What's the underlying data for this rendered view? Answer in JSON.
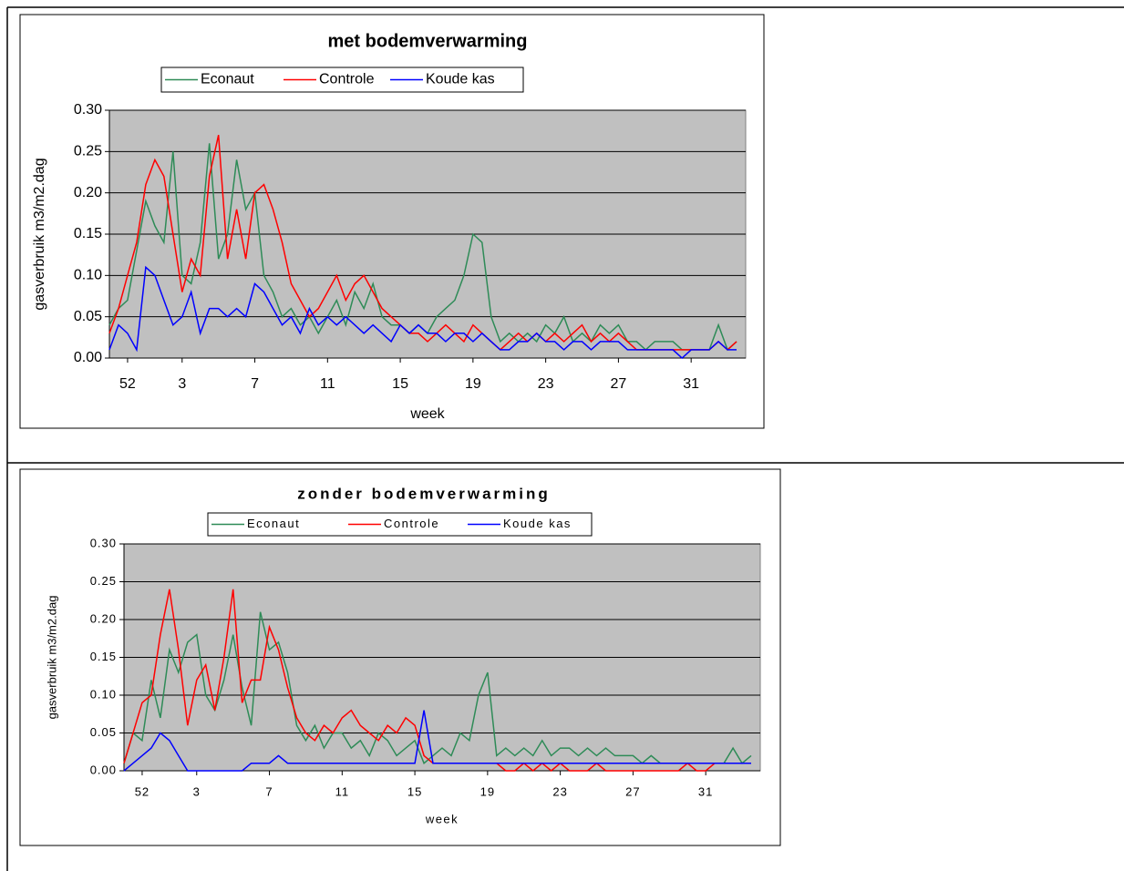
{
  "chart_data": [
    {
      "type": "line",
      "title": "met bodemverwarming",
      "ylabel": "gasverbruik m3/m2.dag",
      "xlabel": "week",
      "categories": [
        null,
        null,
        "52",
        null,
        null,
        null,
        null,
        null,
        "3",
        null,
        null,
        null,
        null,
        null,
        null,
        null,
        "7",
        null,
        null,
        null,
        null,
        null,
        null,
        null,
        "11",
        null,
        null,
        null,
        null,
        null,
        null,
        null,
        "15",
        null,
        null,
        null,
        null,
        null,
        null,
        null,
        "19",
        null,
        null,
        null,
        null,
        null,
        null,
        null,
        "23",
        null,
        null,
        null,
        null,
        null,
        null,
        null,
        "27",
        null,
        null,
        null,
        null,
        null,
        null,
        null,
        "31",
        null,
        null,
        null,
        null,
        null
      ],
      "ylim": [
        0,
        0.3
      ],
      "yticks": [
        {
          "value": 0,
          "label": "0.00"
        },
        0.05,
        {
          "value": 0.1,
          "label": "0.10"
        },
        0.15,
        {
          "value": 0.2,
          "label": "0.20"
        },
        0.25,
        {
          "value": 0.3,
          "label": "0.30"
        }
      ],
      "grid": true,
      "series": [
        {
          "name": "Econaut",
          "color": "#2e8b57",
          "values": [
            0.04,
            0.06,
            0.07,
            0.13,
            0.19,
            0.16,
            0.14,
            0.25,
            0.1,
            0.09,
            0.14,
            0.26,
            0.12,
            0.15,
            0.24,
            0.18,
            0.2,
            0.1,
            0.08,
            0.05,
            0.06,
            0.04,
            0.05,
            0.03,
            0.05,
            0.07,
            0.04,
            0.08,
            0.06,
            0.09,
            0.05,
            0.04,
            0.04,
            0.03,
            0.04,
            0.03,
            0.05,
            0.06,
            0.07,
            0.1,
            0.15,
            0.14,
            0.05,
            0.02,
            0.03,
            0.02,
            0.03,
            0.02,
            0.04,
            0.03,
            0.05,
            0.02,
            0.03,
            0.02,
            0.04,
            0.03,
            0.04,
            0.02,
            0.02,
            0.01,
            0.02,
            0.02,
            0.02,
            0.01,
            0.01,
            0.01,
            0.01,
            0.04,
            0.01,
            0.02
          ]
        },
        {
          "name": "Controle",
          "color": "#ff0000",
          "values": [
            0.03,
            0.06,
            0.1,
            0.14,
            0.21,
            0.24,
            0.22,
            0.15,
            0.08,
            0.12,
            0.1,
            0.22,
            0.27,
            0.12,
            0.18,
            0.12,
            0.2,
            0.21,
            0.18,
            0.14,
            0.09,
            0.07,
            0.05,
            0.06,
            0.08,
            0.1,
            0.07,
            0.09,
            0.1,
            0.08,
            0.06,
            0.05,
            0.04,
            0.03,
            0.03,
            0.02,
            0.03,
            0.04,
            0.03,
            0.02,
            0.04,
            0.03,
            0.02,
            0.01,
            0.02,
            0.03,
            0.02,
            0.03,
            0.02,
            0.03,
            0.02,
            0.03,
            0.04,
            0.02,
            0.03,
            0.02,
            0.03,
            0.02,
            0.01,
            0.01,
            0.01,
            0.01,
            0.01,
            0.01,
            0.01,
            0.01,
            0.01,
            0.02,
            0.01,
            0.02
          ]
        },
        {
          "name": "Koude kas",
          "color": "#0000ff",
          "values": [
            0.01,
            0.04,
            0.03,
            0.01,
            0.11,
            0.1,
            0.07,
            0.04,
            0.05,
            0.08,
            0.03,
            0.06,
            0.06,
            0.05,
            0.06,
            0.05,
            0.09,
            0.08,
            0.06,
            0.04,
            0.05,
            0.03,
            0.06,
            0.04,
            0.05,
            0.04,
            0.05,
            0.04,
            0.03,
            0.04,
            0.03,
            0.02,
            0.04,
            0.03,
            0.04,
            0.03,
            0.03,
            0.02,
            0.03,
            0.03,
            0.02,
            0.03,
            0.02,
            0.01,
            0.01,
            0.02,
            0.02,
            0.03,
            0.02,
            0.02,
            0.01,
            0.02,
            0.02,
            0.01,
            0.02,
            0.02,
            0.02,
            0.01,
            0.01,
            0.01,
            0.01,
            0.01,
            0.01,
            0,
            0.01,
            0.01,
            0.01,
            0.02,
            0.01,
            0.01
          ]
        }
      ]
    },
    {
      "type": "line",
      "title": "zonder bodemverwarming",
      "ylabel": "gasverbruik m3/m2.dag",
      "xlabel": "week",
      "categories": [
        null,
        null,
        "52",
        null,
        null,
        null,
        null,
        null,
        "3",
        null,
        null,
        null,
        null,
        null,
        null,
        null,
        "7",
        null,
        null,
        null,
        null,
        null,
        null,
        null,
        "11",
        null,
        null,
        null,
        null,
        null,
        null,
        null,
        "15",
        null,
        null,
        null,
        null,
        null,
        null,
        null,
        "19",
        null,
        null,
        null,
        null,
        null,
        null,
        null,
        "23",
        null,
        null,
        null,
        null,
        null,
        null,
        null,
        "27",
        null,
        null,
        null,
        null,
        null,
        null,
        null,
        "31",
        null,
        null,
        null,
        null,
        null
      ],
      "ylim": [
        0,
        0.3
      ],
      "yticks": [
        {
          "value": 0,
          "label": "0.00"
        },
        0.05,
        {
          "value": 0.1,
          "label": "0.10"
        },
        0.15,
        {
          "value": 0.2,
          "label": "0.20"
        },
        0.25,
        {
          "value": 0.3,
          "label": "0.30"
        }
      ],
      "grid": true,
      "series": [
        {
          "name": "Econaut",
          "color": "#2e8b57",
          "values": [
            0.01,
            0.05,
            0.04,
            0.12,
            0.07,
            0.16,
            0.13,
            0.17,
            0.18,
            0.1,
            0.08,
            0.12,
            0.18,
            0.11,
            0.06,
            0.21,
            0.16,
            0.17,
            0.13,
            0.06,
            0.04,
            0.06,
            0.03,
            0.05,
            0.05,
            0.03,
            0.04,
            0.02,
            0.05,
            0.04,
            0.02,
            0.03,
            0.04,
            0.01,
            0.02,
            0.03,
            0.02,
            0.05,
            0.04,
            0.1,
            0.13,
            0.02,
            0.03,
            0.02,
            0.03,
            0.02,
            0.04,
            0.02,
            0.03,
            0.03,
            0.02,
            0.03,
            0.02,
            0.03,
            0.02,
            0.02,
            0.02,
            0.01,
            0.02,
            0.01,
            0.01,
            0.01,
            0.01,
            0.01,
            0.01,
            0.01,
            0.01,
            0.03,
            0.01,
            0.02
          ]
        },
        {
          "name": "Controle",
          "color": "#ff0000",
          "values": [
            0.01,
            0.05,
            0.09,
            0.1,
            0.18,
            0.24,
            0.16,
            0.06,
            0.12,
            0.14,
            0.08,
            0.15,
            0.24,
            0.09,
            0.12,
            0.12,
            0.19,
            0.16,
            0.11,
            0.07,
            0.05,
            0.04,
            0.06,
            0.05,
            0.07,
            0.08,
            0.06,
            0.05,
            0.04,
            0.06,
            0.05,
            0.07,
            0.06,
            0.02,
            0.01,
            0.01,
            0.01,
            0.01,
            0.01,
            0.01,
            0.01,
            0.01,
            0,
            0,
            0.01,
            0,
            0.01,
            0,
            0.01,
            0,
            0,
            0,
            0.01,
            0,
            0,
            0,
            0,
            0,
            0,
            0,
            0,
            0,
            0.01,
            0,
            0,
            0.01,
            0.01,
            0.01,
            0.01,
            0.01
          ]
        },
        {
          "name": "Koude kas",
          "color": "#0000ff",
          "values": [
            0,
            0.01,
            0.02,
            0.03,
            0.05,
            0.04,
            0.02,
            0,
            0,
            0,
            0,
            0,
            0,
            0,
            0.01,
            0.01,
            0.01,
            0.02,
            0.01,
            0.01,
            0.01,
            0.01,
            0.01,
            0.01,
            0.01,
            0.01,
            0.01,
            0.01,
            0.01,
            0.01,
            0.01,
            0.01,
            0.01,
            0.08,
            0.01,
            0.01,
            0.01,
            0.01,
            0.01,
            0.01,
            0.01,
            0.01,
            0.01,
            0.01,
            0.01,
            0.01,
            0.01,
            0.01,
            0.01,
            0.01,
            0.01,
            0.01,
            0.01,
            0.01,
            0.01,
            0.01,
            0.01,
            0.01,
            0.01,
            0.01,
            0.01,
            0.01,
            0.01,
            0.01,
            0.01,
            0.01,
            0.01,
            0.01,
            0.01,
            0.01
          ]
        }
      ]
    }
  ]
}
